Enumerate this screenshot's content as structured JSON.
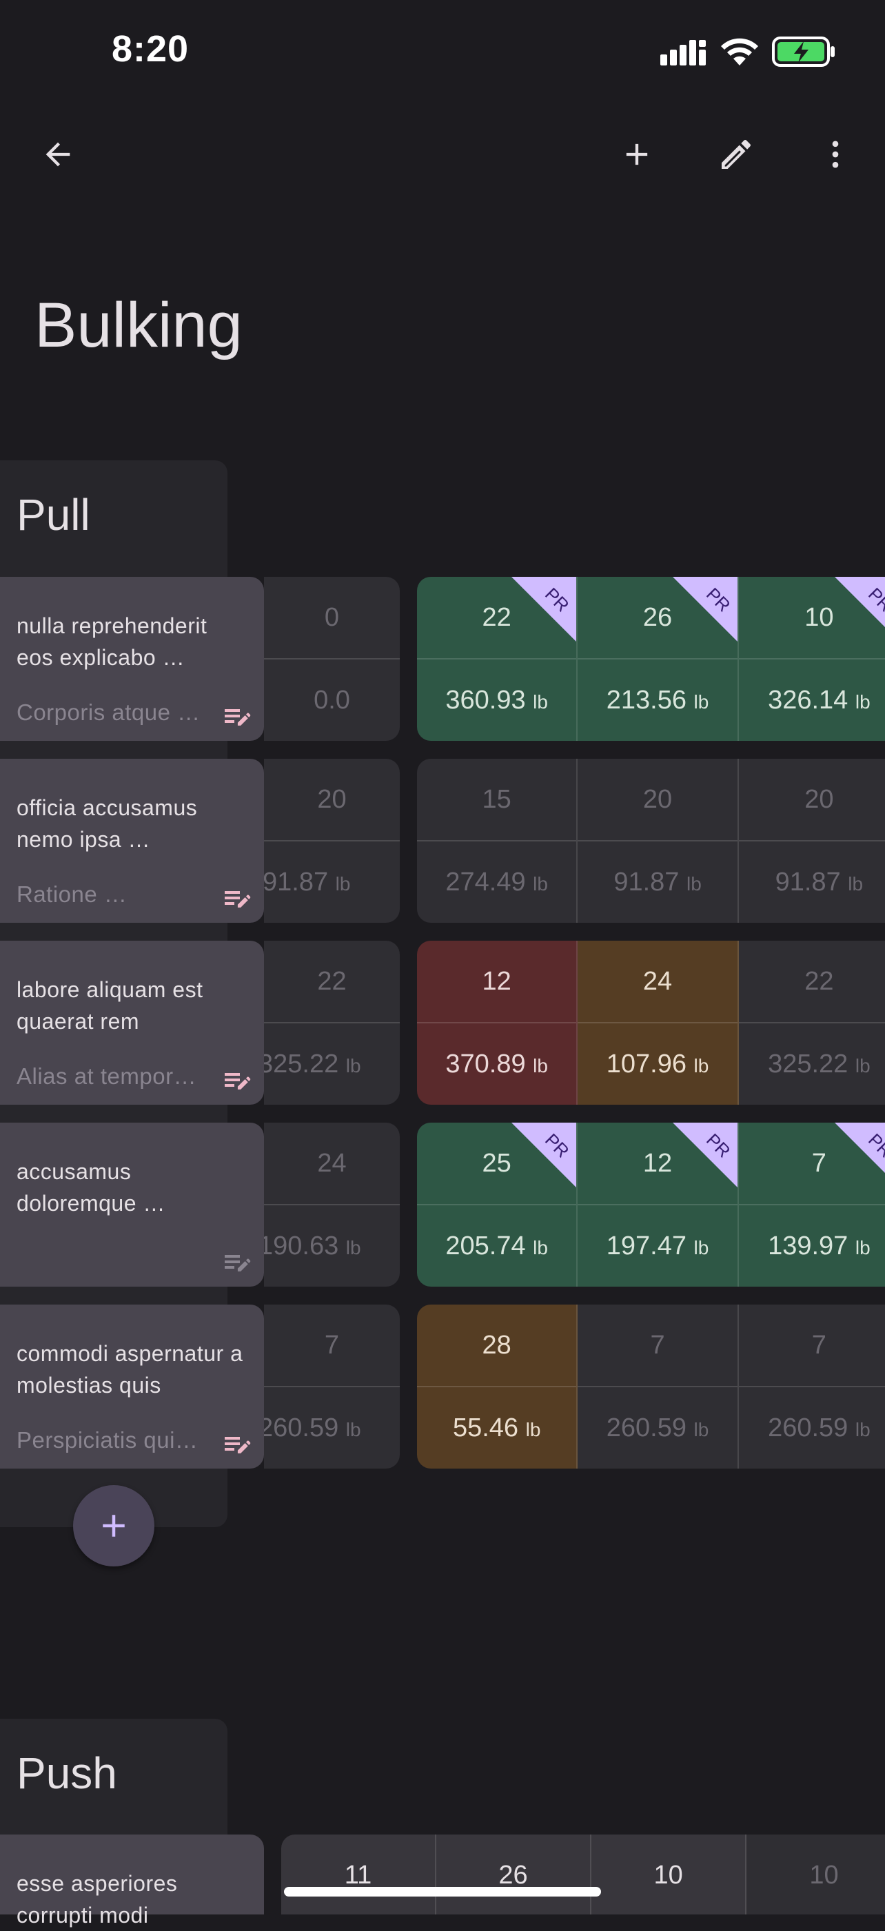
{
  "status_bar": {
    "time": "8:20"
  },
  "app_bar": {
    "back": "arrow-left-icon",
    "add": "plus-icon",
    "edit": "pencil-icon",
    "more": "more-vert-icon"
  },
  "page": {
    "title": "Bulking"
  },
  "sections": [
    {
      "title": "Pull",
      "exercises": [
        {
          "name": "nulla reprehenderit eos explicabo …",
          "note": "Corporis atque …",
          "prev": {
            "reps": "0",
            "weight": "0.0",
            "unit": ""
          },
          "sets": [
            {
              "reps": "22",
              "weight": "360.93",
              "unit": "lb",
              "status": "green",
              "pr": "PR"
            },
            {
              "reps": "26",
              "weight": "213.56",
              "unit": "lb",
              "status": "green",
              "pr": "PR"
            },
            {
              "reps": "10",
              "weight": "326.14",
              "unit": "lb",
              "status": "green",
              "pr": "PR"
            }
          ]
        },
        {
          "name": "officia accusamus nemo ipsa …",
          "note": "Ratione …",
          "prev": {
            "reps": "20",
            "weight": "91.87",
            "unit": "lb"
          },
          "sets": [
            {
              "reps": "15",
              "weight": "274.49",
              "unit": "lb",
              "status": "dim",
              "pr": ""
            },
            {
              "reps": "20",
              "weight": "91.87",
              "unit": "lb",
              "status": "dim",
              "pr": ""
            },
            {
              "reps": "20",
              "weight": "91.87",
              "unit": "lb",
              "status": "dim",
              "pr": ""
            }
          ]
        },
        {
          "name": "labore aliquam est quaerat rem",
          "note": "Alias at tempor…",
          "prev": {
            "reps": "22",
            "weight": "325.22",
            "unit": "lb"
          },
          "sets": [
            {
              "reps": "12",
              "weight": "370.89",
              "unit": "lb",
              "status": "red",
              "pr": ""
            },
            {
              "reps": "24",
              "weight": "107.96",
              "unit": "lb",
              "status": "brown",
              "pr": ""
            },
            {
              "reps": "22",
              "weight": "325.22",
              "unit": "lb",
              "status": "dim",
              "pr": ""
            }
          ]
        },
        {
          "name": "accusamus doloremque …",
          "note": "",
          "prev": {
            "reps": "24",
            "weight": "190.63",
            "unit": "lb"
          },
          "sets": [
            {
              "reps": "25",
              "weight": "205.74",
              "unit": "lb",
              "status": "green",
              "pr": "PR"
            },
            {
              "reps": "12",
              "weight": "197.47",
              "unit": "lb",
              "status": "green",
              "pr": "PR"
            },
            {
              "reps": "7",
              "weight": "139.97",
              "unit": "lb",
              "status": "green",
              "pr": "PR"
            }
          ]
        },
        {
          "name": "commodi aspernatur a molestias quis",
          "note": "Perspiciatis qui…",
          "prev": {
            "reps": "7",
            "weight": "260.59",
            "unit": "lb"
          },
          "sets": [
            {
              "reps": "28",
              "weight": "55.46",
              "unit": "lb",
              "status": "brown",
              "pr": ""
            },
            {
              "reps": "7",
              "weight": "260.59",
              "unit": "lb",
              "status": "dim",
              "pr": ""
            },
            {
              "reps": "7",
              "weight": "260.59",
              "unit": "lb",
              "status": "dim",
              "pr": ""
            }
          ]
        }
      ]
    },
    {
      "title": "Push",
      "exercises": [
        {
          "name": "esse asperiores corrupti modi",
          "sets": [
            {
              "reps": "11"
            },
            {
              "reps": "26"
            },
            {
              "reps": "10"
            },
            {
              "reps": "10"
            }
          ]
        }
      ]
    }
  ],
  "colors": {
    "background": "#1c1b1f",
    "green": "#2e5745",
    "red": "#5a2a2c",
    "brown": "#553d23",
    "pr_badge": "#d0bcff"
  }
}
